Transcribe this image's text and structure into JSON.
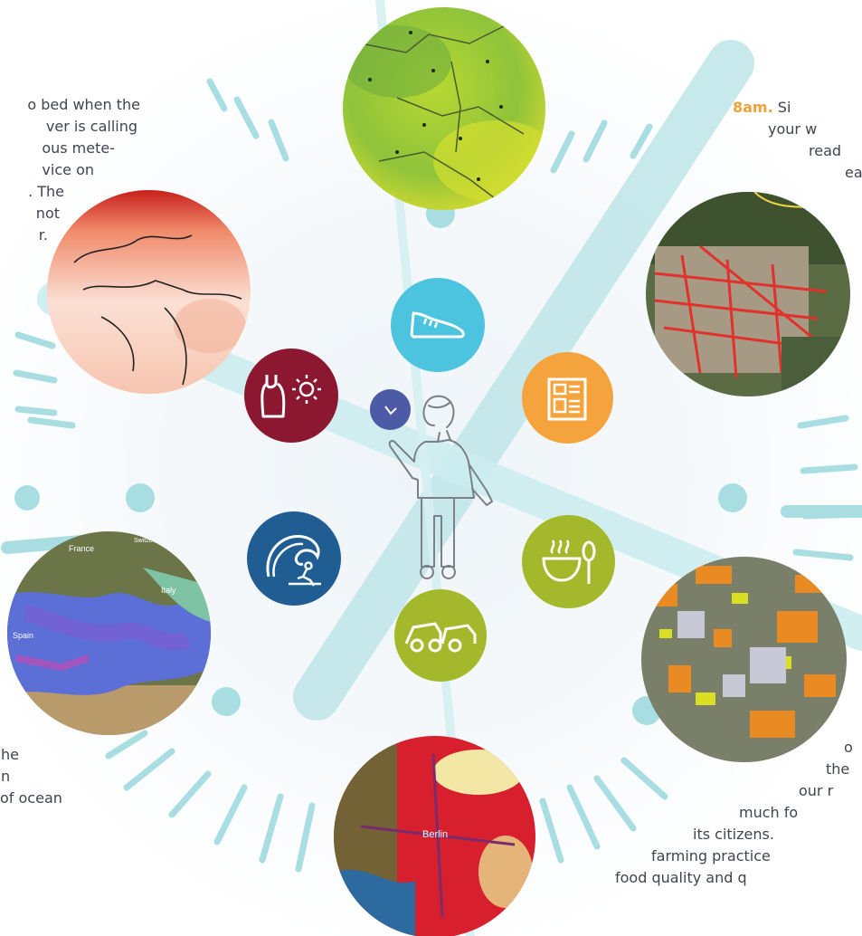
{
  "texts": {
    "top_left": [
      "o bed when the",
      "ver is calling",
      "ous mete-",
      "vice on",
      ". The",
      "not",
      "r."
    ],
    "top_right_hl": "8am.",
    "top_right": [
      "Si",
      "your w",
      "read",
      "ea"
    ],
    "bottom_left": [
      "he",
      "n",
      "of ocean"
    ],
    "bottom_right": [
      "o",
      "the",
      "our r",
      "much fo",
      "its citizens.",
      "farming practice",
      "food quality and q"
    ]
  },
  "map_labels": {
    "france": "France",
    "switzerland": "Switzerland",
    "italy": "Italy",
    "spain": "Spain",
    "berlin": "Berlin"
  },
  "colors": {
    "clock_lines": "#b9e3e6",
    "shoe": "#4cc3df",
    "newspaper": "#f5a33c",
    "food": "#a3b92b",
    "car": "#a3b92b",
    "wave": "#1f5d93",
    "clothes": "#8b1730",
    "clock_icon": "#4d5aa6",
    "text": "#3f4450",
    "accent": "#f0a23a"
  },
  "icons": [
    "shoe-icon",
    "newspaper-icon",
    "food-bowl-icon",
    "car-icon",
    "tsunami-wave-icon",
    "tanktop-sun-icon",
    "clock-icon",
    "person-figure"
  ]
}
